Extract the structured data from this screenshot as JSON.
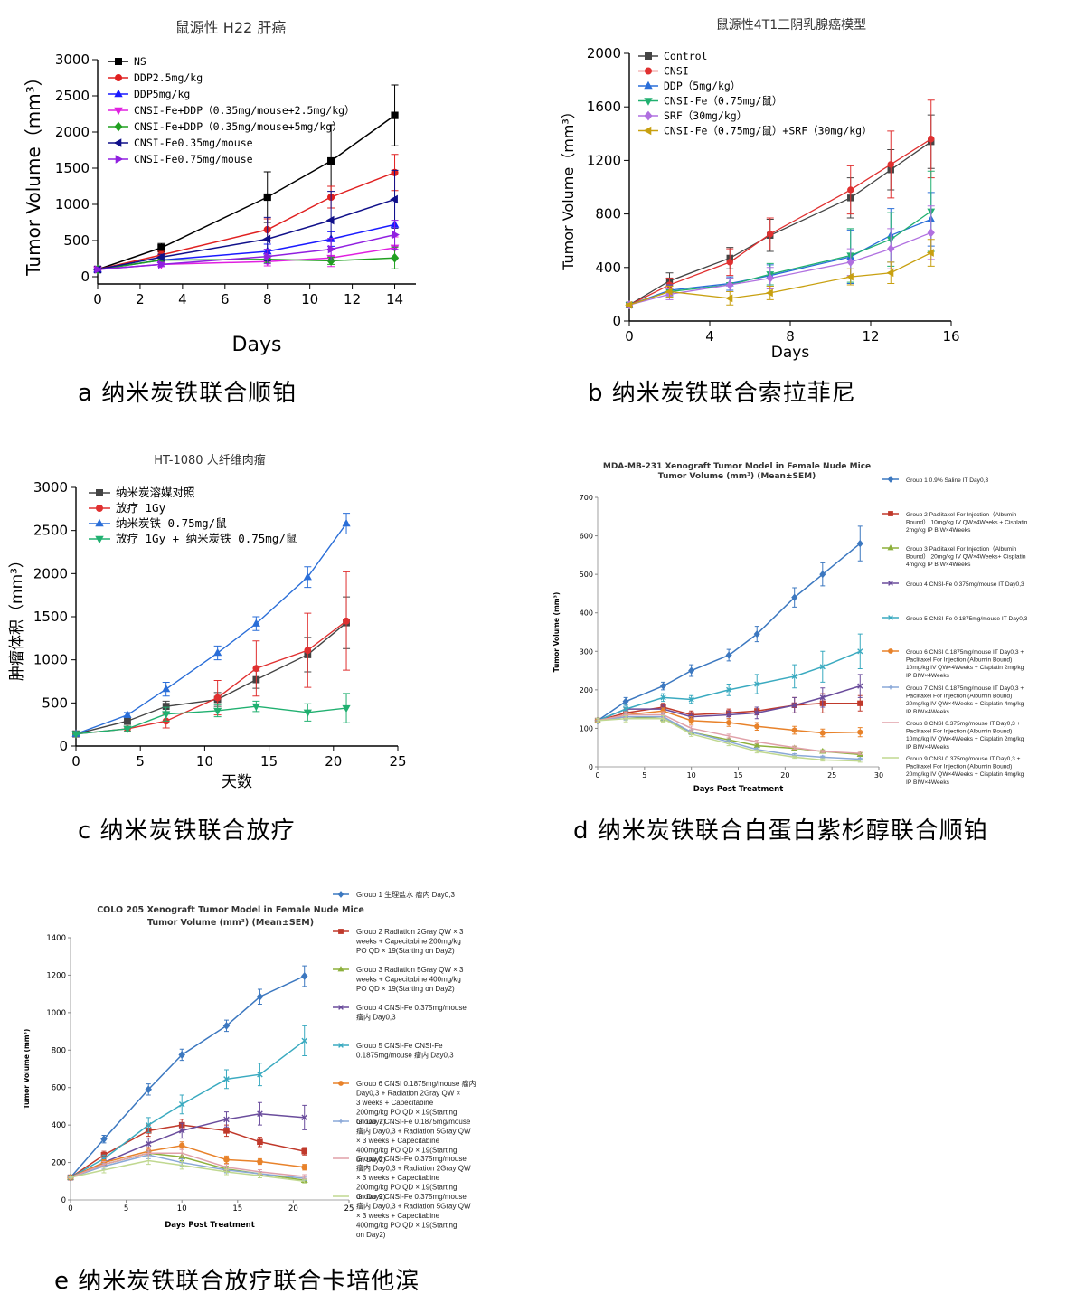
{
  "captions": {
    "a": "a  纳米炭铁联合顺铂",
    "b": "b  纳米炭铁联合索拉菲尼",
    "c": "c  纳米炭铁联合放疗",
    "d": "d  纳米炭铁联合白蛋白紫杉醇联合顺铂",
    "e": "e  纳米炭铁联合放疗联合卡培他滨"
  },
  "chart_data": [
    {
      "id": "a",
      "type": "line",
      "title": "鼠源性 H22 肝癌",
      "xlabel": "Days",
      "ylabel": "Tumor Volume（mm³）",
      "xlim": [
        0,
        15
      ],
      "ylim": [
        -100,
        3000
      ],
      "xticks": [
        "0",
        "2",
        "4",
        "6",
        "8",
        "10",
        "12",
        "14"
      ],
      "yticks": [
        "0",
        "500",
        "1000",
        "1500",
        "2000",
        "2500",
        "3000"
      ],
      "x": [
        0,
        3,
        8,
        11,
        14
      ],
      "series": [
        {
          "name": "NS",
          "color": "#000000",
          "marker": "square",
          "values": [
            100,
            400,
            1100,
            1600,
            2230
          ],
          "err": [
            20,
            60,
            350,
            500,
            420
          ]
        },
        {
          "name": "DDP2.5mg/kg",
          "color": "#e02020",
          "marker": "circle",
          "values": [
            100,
            300,
            650,
            1100,
            1440
          ],
          "err": [
            15,
            50,
            150,
            150,
            250
          ]
        },
        {
          "name": "DDP5mg/kg",
          "color": "#1a1aff",
          "marker": "triangle",
          "values": [
            100,
            230,
            350,
            520,
            720
          ],
          "err": [
            15,
            40,
            100,
            100,
            300
          ]
        },
        {
          "name": "CNSI-Fe+DDP（0.35mg/mouse+2.5mg/kg）",
          "color": "#e020e0",
          "marker": "triangle-down",
          "values": [
            100,
            170,
            210,
            260,
            400
          ],
          "err": [
            15,
            30,
            60,
            120,
            150
          ]
        },
        {
          "name": "CNSI-Fe+DDP（0.35mg/mouse+5mg/kg）",
          "color": "#20a020",
          "marker": "diamond",
          "values": [
            100,
            230,
            240,
            220,
            260
          ],
          "err": [
            15,
            30,
            50,
            50,
            150
          ]
        },
        {
          "name": "CNSI-Fe0.35mg/mouse",
          "color": "#10108a",
          "marker": "triangle-left",
          "values": [
            100,
            270,
            520,
            780,
            1070
          ],
          "err": [
            15,
            40,
            300,
            400,
            400
          ]
        },
        {
          "name": "CNSI-Fe0.75mg/mouse",
          "color": "#9020e0",
          "marker": "triangle-right",
          "values": [
            100,
            170,
            280,
            380,
            580
          ],
          "err": [
            15,
            30,
            100,
            150,
            200
          ]
        }
      ]
    },
    {
      "id": "b",
      "type": "line",
      "title": "鼠源性4T1三阴乳腺癌模型",
      "xlabel": "Days",
      "ylabel": "Tumor Volume（mm³）",
      "xlim": [
        0,
        16
      ],
      "ylim": [
        0,
        2000
      ],
      "xticks": [
        "0",
        "4",
        "8",
        "12",
        "16"
      ],
      "yticks": [
        "0",
        "400",
        "800",
        "1200",
        "1600",
        "2000"
      ],
      "x": [
        0,
        2,
        5,
        7,
        11,
        13,
        15
      ],
      "series": [
        {
          "name": "Control",
          "color": "#444444",
          "marker": "square",
          "values": [
            120,
            300,
            470,
            640,
            920,
            1130,
            1340
          ],
          "err": [
            10,
            60,
            80,
            120,
            150,
            150,
            200
          ]
        },
        {
          "name": "CNSI",
          "color": "#e03030",
          "marker": "circle",
          "values": [
            120,
            270,
            440,
            650,
            980,
            1170,
            1360
          ],
          "err": [
            10,
            50,
            100,
            120,
            180,
            250,
            290
          ]
        },
        {
          "name": "DDP（5mg/kg）",
          "color": "#2a6ed8",
          "marker": "triangle",
          "values": [
            120,
            230,
            280,
            340,
            480,
            640,
            760
          ],
          "err": [
            10,
            40,
            50,
            80,
            200,
            200,
            200
          ]
        },
        {
          "name": "CNSI-Fe（0.75mg/鼠）",
          "color": "#20b070",
          "marker": "triangle-down",
          "values": [
            120,
            220,
            270,
            350,
            490,
            610,
            820
          ],
          "err": [
            10,
            40,
            50,
            80,
            200,
            200,
            300
          ]
        },
        {
          "name": "SRF（30mg/kg）",
          "color": "#b070e0",
          "marker": "diamond",
          "values": [
            120,
            200,
            270,
            320,
            440,
            540,
            660
          ],
          "err": [
            10,
            40,
            50,
            80,
            100,
            150,
            200
          ]
        },
        {
          "name": "CNSI-Fe（0.75mg/鼠）+SRF（30mg/kg）",
          "color": "#c8a010",
          "marker": "triangle-left",
          "values": [
            120,
            220,
            170,
            210,
            330,
            360,
            510
          ],
          "err": [
            10,
            40,
            50,
            50,
            60,
            80,
            100
          ]
        }
      ]
    },
    {
      "id": "c",
      "type": "line",
      "title": "HT-1080 人纤维肉瘤",
      "xlabel": "天数",
      "ylabel": "肿瘤体积（mm³）",
      "xlim": [
        0,
        25
      ],
      "ylim": [
        0,
        3000
      ],
      "xticks": [
        "0",
        "5",
        "10",
        "15",
        "20",
        "25"
      ],
      "yticks": [
        "0",
        "500",
        "1000",
        "1500",
        "2000",
        "2500",
        "3000"
      ],
      "x": [
        0,
        4,
        7,
        11,
        14,
        18,
        21
      ],
      "series": [
        {
          "name": "纳米炭溶媒对照",
          "color": "#444444",
          "marker": "square",
          "values": [
            140,
            290,
            460,
            540,
            770,
            1060,
            1430
          ],
          "err": [
            10,
            40,
            60,
            80,
            100,
            200,
            300
          ]
        },
        {
          "name": "放疗 1Gy",
          "color": "#e03030",
          "marker": "circle",
          "values": [
            140,
            200,
            290,
            560,
            900,
            1110,
            1450
          ],
          "err": [
            10,
            30,
            80,
            200,
            320,
            430,
            570
          ]
        },
        {
          "name": "纳米炭铁 0.75mg/鼠",
          "color": "#2a6ed8",
          "marker": "triangle",
          "values": [
            140,
            360,
            660,
            1080,
            1420,
            1960,
            2580
          ],
          "err": [
            10,
            30,
            80,
            80,
            80,
            120,
            120
          ]
        },
        {
          "name": "放疗 1Gy + 纳米炭铁 0.75mg/鼠",
          "color": "#20b070",
          "marker": "triangle-down",
          "values": [
            140,
            200,
            370,
            410,
            460,
            390,
            440
          ],
          "err": [
            10,
            30,
            80,
            70,
            60,
            100,
            170
          ]
        }
      ]
    },
    {
      "id": "d",
      "type": "line",
      "title": "MDA-MB-231 Xenograft Tumor Model in Female Nude Mice",
      "subtitle": "Tumor Volume (mm³) (Mean±SEM)",
      "xlabel": "Days Post Treatment",
      "ylabel": "Tumor Volume (mm³)",
      "xlim": [
        0,
        30
      ],
      "ylim": [
        0,
        700
      ],
      "xticks": [
        "0",
        "5",
        "10",
        "15",
        "20",
        "25",
        "30"
      ],
      "yticks": [
        "0",
        "100",
        "200",
        "300",
        "400",
        "500",
        "600",
        "700"
      ],
      "x": [
        0,
        3,
        7,
        10,
        14,
        17,
        21,
        24,
        28
      ],
      "series": [
        {
          "name": "Group 1 0.9% Saline IT Day0,3",
          "color": "#3c78c0",
          "marker": "diamond",
          "values": [
            120,
            170,
            210,
            250,
            290,
            345,
            440,
            500,
            580
          ],
          "err": [
            5,
            10,
            10,
            15,
            15,
            20,
            25,
            30,
            45
          ]
        },
        {
          "name": "Group 2 Paclitaxel For Injection（Albumin Bound） 10mg/kg IV QW×4Weeks + Cisplatin 2mg/kg IP BIW×4Weeks",
          "color": "#c0392b",
          "marker": "square",
          "values": [
            120,
            140,
            155,
            135,
            140,
            145,
            160,
            165,
            165
          ],
          "err": [
            5,
            10,
            10,
            10,
            10,
            10,
            20,
            25,
            20
          ]
        },
        {
          "name": "Group 3 Paclitaxel For Injection（Albumin Bound） 20mg/kg IV QW×4Weeks+ Cisplatin 4mg/kg IP BIW×4Weeks",
          "color": "#8db03c",
          "marker": "triangle",
          "values": [
            120,
            130,
            125,
            90,
            70,
            55,
            48,
            40,
            32
          ],
          "err": [
            5,
            8,
            8,
            6,
            5,
            5,
            5,
            4,
            4
          ]
        },
        {
          "name": "Group 4 CNSI-Fe 0.375mg/mouse IT Day0,3",
          "color": "#6a4c9c",
          "marker": "x",
          "values": [
            120,
            150,
            150,
            130,
            135,
            140,
            160,
            180,
            210
          ],
          "err": [
            5,
            10,
            10,
            10,
            10,
            15,
            20,
            25,
            30
          ]
        },
        {
          "name": "Group 5 CNSI-Fe 0.1875mg/mouse IT Day0,3",
          "color": "#3aaac0",
          "marker": "x",
          "values": [
            120,
            150,
            180,
            175,
            200,
            215,
            235,
            260,
            300
          ],
          "err": [
            5,
            10,
            10,
            10,
            15,
            25,
            30,
            40,
            45
          ]
        },
        {
          "name": "Group 6 CNSI 0.1875mg/mouse IT Day0,3 + Paclitaxel For Injection (Albumin Bound) 10mg/kg IV QW×4Weeks + Cisplatin 2mg/kg IP BIW×4Weeks",
          "color": "#e8822a",
          "marker": "circle",
          "values": [
            120,
            135,
            145,
            120,
            115,
            105,
            95,
            88,
            90
          ],
          "err": [
            5,
            8,
            8,
            10,
            10,
            10,
            10,
            10,
            12
          ]
        },
        {
          "name": "Group 7 CNSI 0.1875mg/mouse IT Day0,3 + Paclitaxel For Injection (Albumin Bound) 20mg/kg IV QW×4Weeks + Cisplatin 4mg/kg IP BIW×4Weeks",
          "color": "#8aa8d8",
          "marker": "plus",
          "values": [
            120,
            130,
            130,
            90,
            65,
            45,
            30,
            25,
            20
          ],
          "err": [
            5,
            8,
            8,
            6,
            5,
            4,
            4,
            3,
            3
          ]
        },
        {
          "name": "Group 8 CNSI 0.375mg/mouse IT Day0,3 + Paclitaxel For Injection (Albumin Bound) 10mg/kg IV QW×4Weeks + Cisplatin 2mg/kg IP BIW×4Weeks",
          "color": "#e0a0a8",
          "marker": "none",
          "values": [
            120,
            135,
            135,
            100,
            80,
            65,
            50,
            40,
            35
          ],
          "err": [
            5,
            8,
            8,
            6,
            5,
            4,
            4,
            3,
            3
          ]
        },
        {
          "name": "Group 9 CNSI 0.375mg/mouse IT Day0,3 + Paclitaxel For Injection (Albumin Bound) 20mg/kg IV QW×4Weeks + Cisplatin 4mg/kg IP BIW×4Weeks",
          "color": "#c0d890",
          "marker": "none",
          "values": [
            120,
            125,
            125,
            85,
            60,
            40,
            25,
            18,
            15
          ],
          "err": [
            5,
            8,
            8,
            6,
            5,
            4,
            3,
            3,
            3
          ]
        }
      ]
    },
    {
      "id": "e",
      "type": "line",
      "title": "COLO 205 Xenograft Tumor Model in Female Nude Mice",
      "subtitle": "Tumor Volume (mm³) (Mean±SEM)",
      "xlabel": "Days Post Treatment",
      "ylabel": "Tumor Volume (mm³)",
      "xlim": [
        0,
        25
      ],
      "ylim": [
        0,
        1400
      ],
      "xticks": [
        "0",
        "5",
        "10",
        "15",
        "20",
        "25"
      ],
      "yticks": [
        "0",
        "200",
        "400",
        "600",
        "800",
        "1000",
        "1200",
        "1400"
      ],
      "x": [
        0,
        3,
        7,
        10,
        14,
        17,
        21
      ],
      "series": [
        {
          "name": "Group 1 生理盐水 瘤内 Day0,3",
          "color": "#3c78c0",
          "marker": "diamond",
          "values": [
            120,
            325,
            590,
            775,
            930,
            1085,
            1195
          ],
          "err": [
            5,
            20,
            30,
            30,
            30,
            40,
            55
          ]
        },
        {
          "name": "Group 2 Radiation 2Gray QW × 3 weeks + Capecitabine 200mg/kg PO QD × 19(Starting on Day2)",
          "color": "#c0392b",
          "marker": "square",
          "values": [
            120,
            240,
            370,
            400,
            370,
            310,
            260
          ],
          "err": [
            5,
            20,
            30,
            30,
            30,
            25,
            20
          ]
        },
        {
          "name": "Group 3 Radiation 5Gray QW × 3 weeks + Capecitabine 400mg/kg PO QD × 19(Starting on Day2)",
          "color": "#8db03c",
          "marker": "triangle",
          "values": [
            120,
            190,
            250,
            230,
            165,
            140,
            105
          ],
          "err": [
            5,
            15,
            20,
            20,
            15,
            12,
            10
          ]
        },
        {
          "name": "Group 4 CNSI-Fe 0.375mg/mouse 瘤内 Day0,3",
          "color": "#6a4c9c",
          "marker": "x",
          "values": [
            120,
            200,
            300,
            370,
            430,
            460,
            440
          ],
          "err": [
            5,
            20,
            30,
            40,
            40,
            60,
            65
          ]
        },
        {
          "name": "Group 5 CNSI-Fe CNSI-Fe 0.1875mg/mouse 瘤内 Day0,3",
          "color": "#3aaac0",
          "marker": "x",
          "values": [
            120,
            220,
            400,
            510,
            645,
            670,
            850
          ],
          "err": [
            5,
            20,
            40,
            50,
            50,
            60,
            80
          ]
        },
        {
          "name": "Group 6 CNSI 0.1875mg/mouse 瘤内 Day0,3 + Radiation 2Gray QW × 3 weeks + Capecitabine 200mg/kg PO QD × 19(Starting on Day2)",
          "color": "#e8822a",
          "marker": "circle",
          "values": [
            120,
            200,
            260,
            290,
            215,
            205,
            175
          ],
          "err": [
            5,
            15,
            20,
            20,
            20,
            15,
            15
          ]
        },
        {
          "name": "Group 7 CNSI-Fe 0.1875mg/mouse 瘤内 Day0,3 + Radiation 5Gray QW × 3 weeks + Capecitabine 400mg/kg PO QD × 19(Starting on Day2)",
          "color": "#8aa8d8",
          "marker": "plus",
          "values": [
            120,
            180,
            240,
            200,
            160,
            140,
            115
          ],
          "err": [
            5,
            15,
            20,
            20,
            15,
            12,
            10
          ]
        },
        {
          "name": "Group 8 CNSI-Fe 0.375mg/mouse 瘤内 Day0,3 + Radiation 2Gray QW × 3 weeks + Capecitabine 200mg/kg PO QD × 19(Starting on Day2)",
          "color": "#e0a0a8",
          "marker": "none",
          "values": [
            120,
            190,
            250,
            250,
            175,
            150,
            125
          ],
          "err": [
            5,
            15,
            20,
            20,
            15,
            12,
            10
          ]
        },
        {
          "name": "Group 9 CNSI-Fe 0.375mg/mouse 瘤内 Day0,3 + Radiation 5Gray QW × 3 weeks + Capecitabine 400mg/kg PO QD × 19(Starting on Day2)",
          "color": "#c0d890",
          "marker": "none",
          "values": [
            120,
            160,
            210,
            185,
            150,
            130,
            100
          ],
          "err": [
            5,
            15,
            20,
            20,
            15,
            12,
            10
          ]
        }
      ]
    }
  ]
}
